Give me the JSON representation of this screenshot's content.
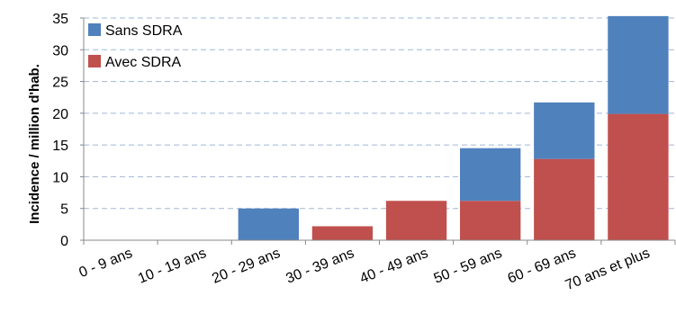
{
  "chart_data": {
    "type": "bar",
    "stacked": true,
    "title": "",
    "xlabel": "",
    "ylabel": "Incidence / million d'hab.",
    "ylim": [
      0,
      35
    ],
    "yticks": [
      0,
      5,
      10,
      15,
      20,
      25,
      30,
      35
    ],
    "grid": "horizontal dashed",
    "legend_position": "top-left",
    "categories": [
      "0 - 9 ans",
      "10 - 19 ans",
      "20 - 29 ans",
      "30 - 39 ans",
      "40 - 49 ans",
      "50 - 59 ans",
      "60 - 69 ans",
      "70 ans et plus"
    ],
    "series": [
      {
        "name": "Avec SDRA",
        "color": "#c0504d",
        "values": [
          0,
          0,
          0,
          2.2,
          6.2,
          6.2,
          12.8,
          19.9
        ]
      },
      {
        "name": "Sans SDRA",
        "color": "#4f81bd",
        "values": [
          0,
          0,
          5.0,
          0,
          0,
          8.3,
          8.9,
          15.4
        ]
      }
    ],
    "legend": [
      "Sans SDRA",
      "Avec SDRA"
    ]
  }
}
